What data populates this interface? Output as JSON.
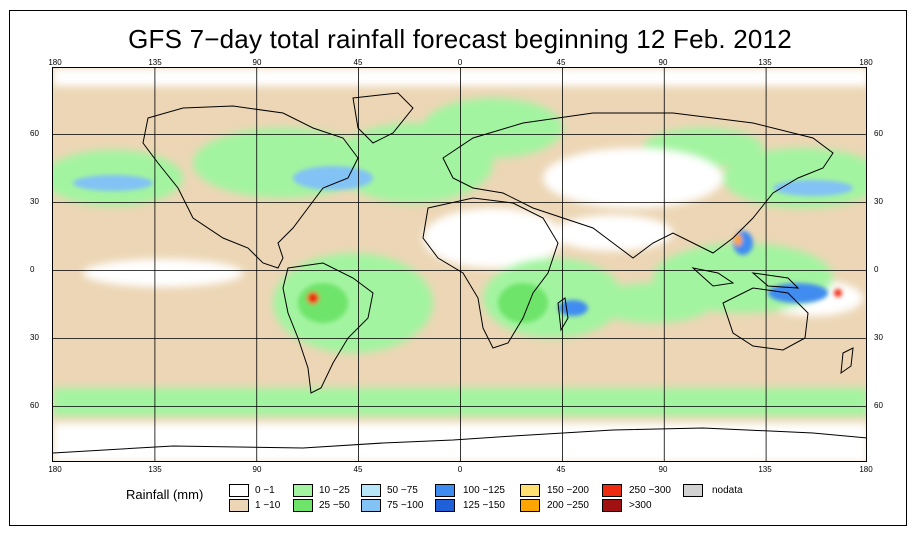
{
  "title": "GFS 7−day total rainfall forecast beginning 12 Feb. 2012",
  "longitude_ticks_top": [
    "180",
    "135",
    "90",
    "45",
    "0",
    "45",
    "90",
    "135",
    "180"
  ],
  "longitude_ticks_bottom": [
    "180",
    "135",
    "90",
    "45",
    "0",
    "45",
    "90",
    "135",
    "180"
  ],
  "latitude_ticks_left": [
    "60",
    "30",
    "0",
    "30",
    "60"
  ],
  "latitude_ticks_right": [
    "60",
    "30",
    "0",
    "30",
    "60"
  ],
  "legend": {
    "title": "Rainfall (mm)",
    "items": [
      {
        "label": "0 −1",
        "color": "#ffffff"
      },
      {
        "label": "1 −10",
        "color": "#ecd6b5"
      },
      {
        "label": "10 −25",
        "color": "#a3f4a0"
      },
      {
        "label": "25 −50",
        "color": "#6ee46a"
      },
      {
        "label": "50 −75",
        "color": "#b6e6f8"
      },
      {
        "label": "75 −100",
        "color": "#82c2f5"
      },
      {
        "label": "100 −125",
        "color": "#3f8cf0"
      },
      {
        "label": "125 −150",
        "color": "#1f5fd8"
      },
      {
        "label": "150 −200",
        "color": "#ffe070"
      },
      {
        "label": "200 −250",
        "color": "#ffa500"
      },
      {
        "label": "250 −300",
        "color": "#ee2a10"
      },
      {
        "label": ">300",
        "color": "#a01212"
      },
      {
        "label": "nodata",
        "color": "#d2d2d2"
      }
    ]
  }
}
